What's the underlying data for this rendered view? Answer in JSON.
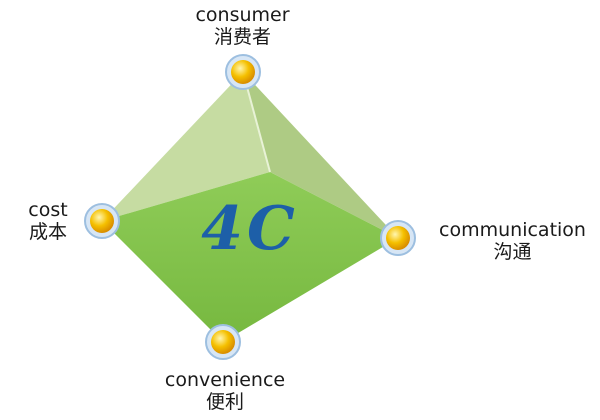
{
  "center": {
    "title": "4C",
    "color": "#1d5fa8"
  },
  "nodes": {
    "consumer": {
      "en": "consumer",
      "zh": "消费者"
    },
    "cost": {
      "en": "cost",
      "zh": "成本"
    },
    "communication": {
      "en": "communication",
      "zh": "沟通"
    },
    "convenience": {
      "en": "convenience",
      "zh": "便利"
    }
  },
  "colors": {
    "front_face": "#88c653",
    "back_face": "#b9d690",
    "side_face": "#a9c880",
    "node_fill": "#f5c000",
    "node_ring": "#a9c8e8"
  }
}
